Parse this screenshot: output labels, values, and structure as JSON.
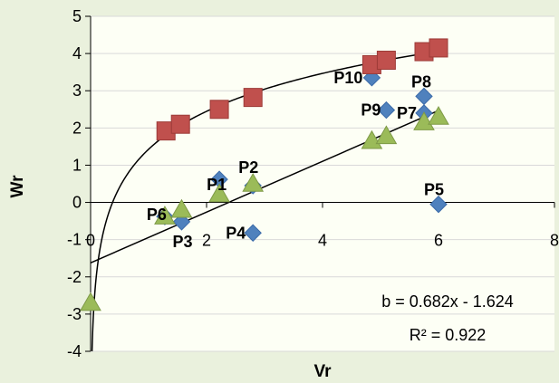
{
  "chart_data": {
    "type": "scatter",
    "xlabel": "Vr",
    "ylabel": "Wr",
    "xlim": [
      0,
      8
    ],
    "ylim": [
      -4,
      5
    ],
    "x_ticks": [
      "0",
      "2",
      "4",
      "6",
      "8"
    ],
    "y_ticks": [
      "5",
      "4",
      "3",
      "2",
      "1",
      "0",
      "-1",
      "-2",
      "-3",
      "-4"
    ],
    "colors": {
      "diamond": "#4f81bd",
      "square": "#c0504d",
      "triangle": "#9bbb59",
      "background": "#eaf1dd",
      "plot_area": "#fdfff5"
    },
    "series": [
      {
        "marker": "diamond",
        "points": [
          {
            "label": "P1",
            "x": 2.22,
            "y": 0.62
          },
          {
            "label": "P2",
            "x": 2.8,
            "y": 0.45
          },
          {
            "label": "P3",
            "x": 1.57,
            "y": -0.52
          },
          {
            "label": "P4",
            "x": 2.8,
            "y": -0.82
          },
          {
            "label": "P5",
            "x": 6.0,
            "y": -0.05
          },
          {
            "label": "P6",
            "x": 1.28,
            "y": -0.38
          },
          {
            "label": "P7",
            "x": 5.75,
            "y": 2.4
          },
          {
            "label": "P8",
            "x": 5.75,
            "y": 2.85
          },
          {
            "label": "P9",
            "x": 5.1,
            "y": 2.48
          },
          {
            "label": "P10",
            "x": 4.85,
            "y": 3.35
          }
        ]
      },
      {
        "marker": "square",
        "points": [
          {
            "x": 1.3,
            "y": 1.92
          },
          {
            "x": 1.55,
            "y": 2.1
          },
          {
            "x": 2.22,
            "y": 2.5
          },
          {
            "x": 2.8,
            "y": 2.82
          },
          {
            "x": 4.85,
            "y": 3.7
          },
          {
            "x": 5.1,
            "y": 3.82
          },
          {
            "x": 5.75,
            "y": 4.05
          },
          {
            "x": 6.0,
            "y": 4.15
          }
        ]
      },
      {
        "marker": "triangle",
        "points": [
          {
            "x": 0.0,
            "y": -2.7
          },
          {
            "x": 1.28,
            "y": -0.38
          },
          {
            "x": 1.57,
            "y": -0.2
          },
          {
            "x": 2.22,
            "y": 0.22
          },
          {
            "x": 2.8,
            "y": 0.5
          },
          {
            "x": 4.85,
            "y": 1.65
          },
          {
            "x": 5.1,
            "y": 1.78
          },
          {
            "x": 5.75,
            "y": 2.15
          },
          {
            "x": 6.0,
            "y": 2.3
          }
        ]
      }
    ],
    "trendlines": [
      {
        "kind": "linear",
        "slope": 0.682,
        "intercept": -1.624
      },
      {
        "kind": "log"
      }
    ],
    "annotations": {
      "equation": "b = 0.682x - 1.624",
      "r_squared": "R² = 0.922"
    }
  }
}
